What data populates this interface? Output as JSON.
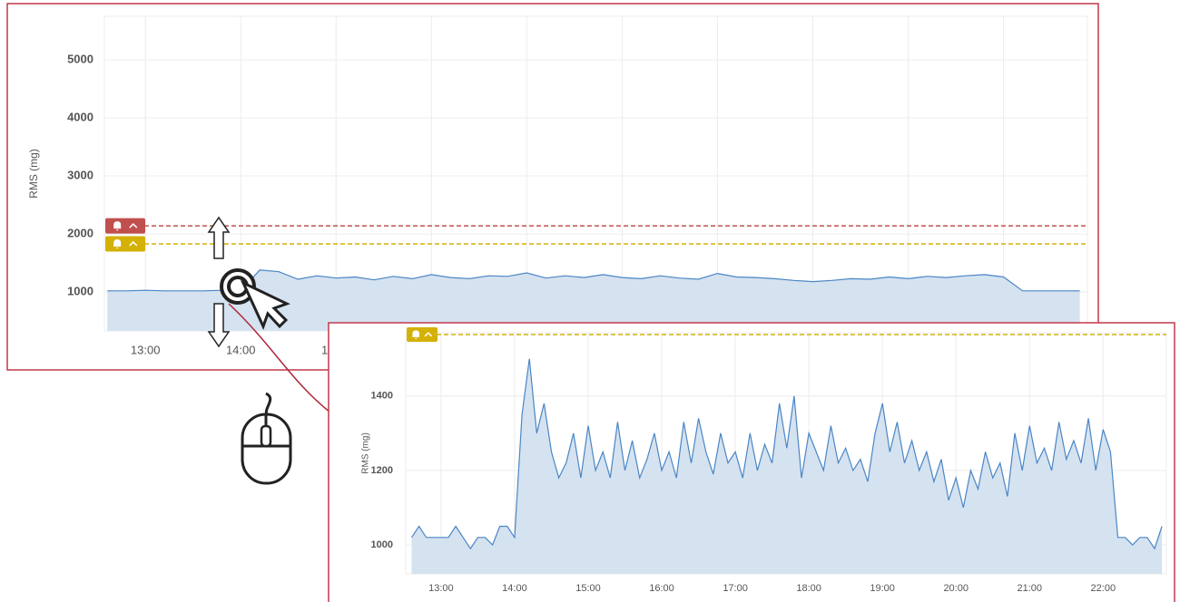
{
  "chart_data": [
    {
      "type": "line",
      "y_label": "RMS (mg)",
      "x": [
        12.6,
        12.8,
        13.0,
        13.2,
        13.4,
        13.6,
        13.8,
        14.0,
        14.2,
        14.4,
        14.6,
        14.8,
        15.0,
        15.2,
        15.4,
        15.6,
        15.8,
        16.0,
        16.2,
        16.4,
        16.6,
        16.8,
        17.0,
        17.2,
        17.4,
        17.6,
        17.8,
        18.0,
        18.2,
        18.4,
        18.6,
        18.8,
        19.0,
        19.2,
        19.4,
        19.6,
        19.8,
        20.0,
        20.2,
        20.4,
        20.6,
        20.8,
        21.0,
        21.2,
        21.4,
        21.6,
        21.8,
        22.0,
        22.2,
        22.4,
        22.6,
        22.8
      ],
      "series": [
        {
          "color": "#4a86c5",
          "values": [
            1020,
            1020,
            1030,
            1020,
            1020,
            1020,
            1030,
            1020,
            1380,
            1350,
            1220,
            1280,
            1240,
            1260,
            1210,
            1270,
            1230,
            1300,
            1250,
            1230,
            1280,
            1270,
            1330,
            1240,
            1280,
            1250,
            1300,
            1250,
            1230,
            1280,
            1240,
            1220,
            1320,
            1260,
            1250,
            1230,
            1200,
            1180,
            1200,
            1230,
            1220,
            1260,
            1230,
            1270,
            1250,
            1280,
            1300,
            1260,
            1020,
            1020,
            1020,
            1020
          ]
        }
      ],
      "thresholds": [
        {
          "value": 2140,
          "color": "#c0504d"
        },
        {
          "value": 1830,
          "color": "#d4b106"
        }
      ],
      "xlim": [
        12.57,
        22.88
      ],
      "xticks": [
        {
          "value": 13,
          "label": "13:00"
        },
        {
          "value": 14,
          "label": "14:00"
        },
        {
          "value": 15,
          "label": "15:00"
        },
        {
          "value": 16,
          "label": "16:00"
        },
        {
          "value": 17,
          "label": "17:00"
        },
        {
          "value": 18,
          "label": "18:00"
        },
        {
          "value": 19,
          "label": "19:00"
        },
        {
          "value": 20,
          "label": "20:00"
        },
        {
          "value": 21,
          "label": "21:00"
        },
        {
          "value": 22,
          "label": "22:00"
        }
      ],
      "ylim": [
        330,
        5750
      ],
      "yticks": [
        1000,
        2000,
        3000,
        4000,
        5000
      ],
      "grid": true
    },
    {
      "type": "line",
      "y_label": "RMS (mg)",
      "x": [
        12.6,
        12.7,
        12.8,
        12.9,
        13.0,
        13.1,
        13.2,
        13.3,
        13.4,
        13.5,
        13.6,
        13.7,
        13.8,
        13.9,
        14.0,
        14.1,
        14.2,
        14.3,
        14.4,
        14.5,
        14.6,
        14.7,
        14.8,
        14.9,
        15.0,
        15.1,
        15.2,
        15.3,
        15.4,
        15.5,
        15.6,
        15.7,
        15.8,
        15.9,
        16.0,
        16.1,
        16.2,
        16.3,
        16.4,
        16.5,
        16.6,
        16.7,
        16.8,
        16.9,
        17.0,
        17.1,
        17.2,
        17.3,
        17.4,
        17.5,
        17.6,
        17.7,
        17.8,
        17.9,
        18.0,
        18.1,
        18.2,
        18.3,
        18.4,
        18.5,
        18.6,
        18.7,
        18.8,
        18.9,
        19.0,
        19.1,
        19.2,
        19.3,
        19.4,
        19.5,
        19.6,
        19.7,
        19.8,
        19.9,
        20.0,
        20.1,
        20.2,
        20.3,
        20.4,
        20.5,
        20.6,
        20.7,
        20.8,
        20.9,
        21.0,
        21.1,
        21.2,
        21.3,
        21.4,
        21.5,
        21.6,
        21.7,
        21.8,
        21.9,
        22.0,
        22.1,
        22.2,
        22.3,
        22.4,
        22.5,
        22.6,
        22.7,
        22.8
      ],
      "series": [
        {
          "color": "#4a86c5",
          "values": [
            1020,
            1050,
            1020,
            1020,
            1020,
            1020,
            1050,
            1020,
            990,
            1020,
            1020,
            1000,
            1050,
            1050,
            1020,
            1350,
            1500,
            1300,
            1380,
            1250,
            1180,
            1220,
            1300,
            1180,
            1320,
            1200,
            1250,
            1180,
            1330,
            1200,
            1280,
            1180,
            1230,
            1300,
            1200,
            1250,
            1180,
            1330,
            1220,
            1340,
            1250,
            1190,
            1300,
            1220,
            1250,
            1180,
            1300,
            1200,
            1270,
            1220,
            1380,
            1260,
            1400,
            1180,
            1300,
            1250,
            1200,
            1320,
            1220,
            1260,
            1200,
            1230,
            1170,
            1300,
            1380,
            1250,
            1330,
            1220,
            1280,
            1200,
            1250,
            1170,
            1230,
            1120,
            1180,
            1100,
            1200,
            1150,
            1250,
            1180,
            1220,
            1130,
            1300,
            1200,
            1320,
            1220,
            1260,
            1200,
            1330,
            1230,
            1280,
            1220,
            1340,
            1200,
            1310,
            1250,
            1020,
            1020,
            1000,
            1020,
            1020,
            990,
            1050
          ]
        }
      ],
      "thresholds": [
        {
          "value": 1565,
          "color": "#d4b106"
        }
      ],
      "xlim": [
        12.52,
        22.86
      ],
      "xticks": [
        {
          "value": 13,
          "label": "13:00"
        },
        {
          "value": 14,
          "label": "14:00"
        },
        {
          "value": 15,
          "label": "15:00"
        },
        {
          "value": 16,
          "label": "16:00"
        },
        {
          "value": 17,
          "label": "17:00"
        },
        {
          "value": 18,
          "label": "18:00"
        },
        {
          "value": 19,
          "label": "19:00"
        },
        {
          "value": 20,
          "label": "20:00"
        },
        {
          "value": 21,
          "label": "21:00"
        },
        {
          "value": 22,
          "label": "22:00"
        }
      ],
      "ylim": [
        922,
        1570
      ],
      "yticks": [
        1000,
        1200,
        1400
      ],
      "grid": true
    }
  ]
}
